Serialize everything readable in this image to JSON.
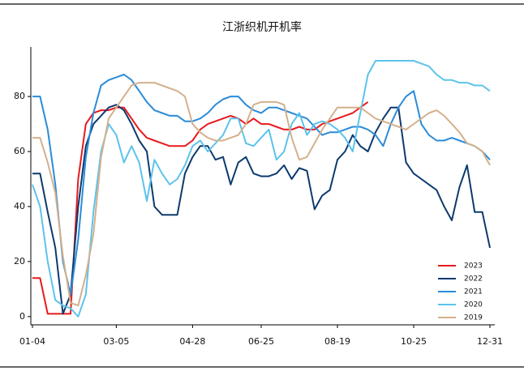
{
  "chart_data": {
    "type": "line",
    "title": "江浙织机开机率",
    "categories": [
      "01-04",
      null,
      null,
      null,
      null,
      null,
      null,
      null,
      null,
      null,
      null,
      "03-05",
      null,
      null,
      null,
      null,
      null,
      null,
      null,
      null,
      null,
      "04-28",
      null,
      null,
      null,
      null,
      null,
      null,
      null,
      null,
      "06-25",
      null,
      null,
      null,
      null,
      null,
      null,
      null,
      null,
      null,
      "08-19",
      null,
      null,
      null,
      null,
      null,
      null,
      null,
      null,
      null,
      "10-25",
      null,
      null,
      null,
      null,
      null,
      null,
      null,
      null,
      null,
      "12-31"
    ],
    "series": [
      {
        "name": "2023",
        "color": "#e8191c",
        "values": [
          14,
          14,
          1,
          1,
          1,
          1,
          50,
          70,
          74,
          75,
          75,
          76,
          76,
          72,
          68,
          65,
          64,
          63,
          62,
          62,
          62,
          64,
          68,
          70,
          71,
          72,
          73,
          72,
          70,
          72,
          70,
          70,
          69,
          68,
          68,
          69,
          68,
          68,
          70,
          71,
          72,
          73,
          74,
          76,
          78,
          null,
          null,
          null,
          null,
          null,
          null,
          null,
          null,
          null,
          null,
          null,
          null,
          null,
          null,
          null,
          null
        ]
      },
      {
        "name": "2022",
        "color": "#0d3a6e",
        "values": [
          52,
          52,
          38,
          25,
          1,
          8,
          40,
          62,
          70,
          73,
          76,
          77,
          75,
          70,
          64,
          60,
          40,
          37,
          37,
          37,
          52,
          58,
          62,
          62,
          57,
          58,
          48,
          56,
          58,
          52,
          51,
          51,
          52,
          55,
          50,
          54,
          53,
          39,
          44,
          46,
          57,
          60,
          66,
          62,
          60,
          67,
          72,
          76,
          76,
          56,
          52,
          50,
          48,
          46,
          40,
          35,
          47,
          55,
          38,
          38,
          25
        ]
      },
      {
        "name": "2021",
        "color": "#2b8bd8",
        "values": [
          80,
          80,
          68,
          48,
          20,
          8,
          28,
          58,
          74,
          84,
          86,
          87,
          88,
          86,
          82,
          78,
          75,
          74,
          73,
          73,
          71,
          71,
          72,
          74,
          77,
          79,
          80,
          80,
          77,
          75,
          74,
          76,
          76,
          75,
          74,
          73,
          72,
          69,
          66,
          67,
          67,
          68,
          69,
          69,
          68,
          66,
          62,
          70,
          76,
          80,
          82,
          70,
          66,
          64,
          64,
          65,
          64,
          63,
          62,
          60,
          57
        ]
      },
      {
        "name": "2020",
        "color": "#5cc3ec",
        "values": [
          48,
          40,
          20,
          6,
          4,
          3,
          0,
          8,
          38,
          60,
          70,
          66,
          56,
          62,
          56,
          42,
          57,
          52,
          48,
          50,
          55,
          62,
          64,
          60,
          63,
          66,
          72,
          72,
          63,
          62,
          65,
          68,
          57,
          60,
          70,
          74,
          66,
          70,
          71,
          70,
          68,
          65,
          60,
          74,
          88,
          93,
          93,
          93,
          93,
          93,
          93,
          92,
          91,
          88,
          86,
          86,
          85,
          85,
          84,
          84,
          82
        ]
      },
      {
        "name": "2019",
        "color": "#d4b08c",
        "values": [
          65,
          65,
          56,
          45,
          22,
          5,
          4,
          15,
          30,
          58,
          72,
          76,
          80,
          84,
          85,
          85,
          85,
          84,
          83,
          82,
          80,
          70,
          67,
          65,
          64,
          64,
          65,
          66,
          70,
          77,
          78,
          78,
          78,
          77,
          65,
          57,
          58,
          63,
          68,
          72,
          76,
          76,
          76,
          76,
          74,
          72,
          71,
          70,
          69,
          68,
          70,
          72,
          74,
          75,
          73,
          70,
          67,
          63,
          62,
          60,
          55
        ]
      }
    ],
    "ylim": [
      -3,
      98
    ],
    "yticks": [
      0,
      20,
      40,
      60,
      80
    ],
    "grid": false,
    "legend": "lower right"
  }
}
